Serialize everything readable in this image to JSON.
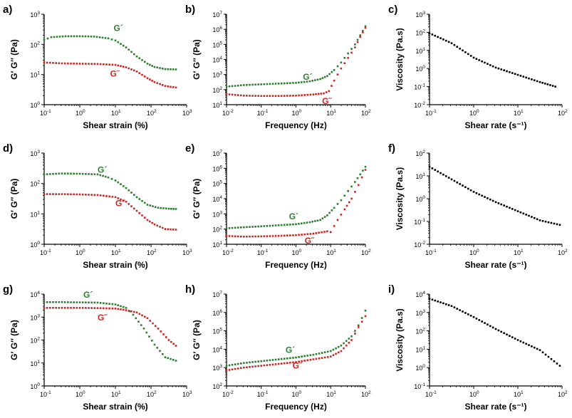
{
  "colors": {
    "g_prime": "#2e7d32",
    "g_double": "#c62828",
    "viscosity": "#000000",
    "axis": "#000000"
  },
  "chart_data": [
    {
      "panel": "a)",
      "type": "scatter",
      "xlabel": "Shear strain (%)",
      "ylabel": "G′ G″ (Pa)",
      "xlog": [
        -1,
        3
      ],
      "ylog": [
        0,
        3
      ],
      "xticks": [
        "-1",
        "0",
        "1",
        "2",
        "3"
      ],
      "yticks": [
        "0",
        "1",
        "2",
        "3"
      ],
      "series": [
        {
          "name": "G′",
          "label_text": "G´",
          "color_key": "g_prime",
          "points": [
            [
              -1,
              2.15
            ],
            [
              -0.8,
              2.24
            ],
            [
              -0.4,
              2.27
            ],
            [
              0,
              2.27
            ],
            [
              0.4,
              2.26
            ],
            [
              0.8,
              2.2
            ],
            [
              1.0,
              2.13
            ],
            [
              1.3,
              1.9
            ],
            [
              1.6,
              1.6
            ],
            [
              1.9,
              1.36
            ],
            [
              2.1,
              1.25
            ],
            [
              2.4,
              1.18
            ],
            [
              2.7,
              1.17
            ]
          ]
        },
        {
          "name": "G″",
          "label_text": "G˝",
          "color_key": "g_double",
          "points": [
            [
              -1,
              1.4
            ],
            [
              -0.5,
              1.37
            ],
            [
              0,
              1.36
            ],
            [
              0.5,
              1.35
            ],
            [
              1.0,
              1.32
            ],
            [
              1.3,
              1.24
            ],
            [
              1.6,
              1.1
            ],
            [
              1.9,
              0.88
            ],
            [
              2.1,
              0.75
            ],
            [
              2.4,
              0.62
            ],
            [
              2.7,
              0.57
            ]
          ]
        }
      ]
    },
    {
      "panel": "b)",
      "type": "scatter",
      "xlabel": "Frequency (Hz)",
      "ylabel": "G′ G″ (Pa)",
      "xlog": [
        -2,
        2
      ],
      "ylog": [
        1,
        7
      ],
      "xticks": [
        "-2",
        "-1",
        "0",
        "1",
        "2"
      ],
      "yticks": [
        "1",
        "2",
        "3",
        "4",
        "5",
        "6",
        "7"
      ],
      "series": [
        {
          "name": "G′",
          "label_text": "G´",
          "color_key": "g_prime",
          "points": [
            [
              -2,
              2.2
            ],
            [
              -1.5,
              2.3
            ],
            [
              -1,
              2.35
            ],
            [
              -0.5,
              2.4
            ],
            [
              0,
              2.45
            ],
            [
              0.4,
              2.55
            ],
            [
              0.7,
              2.7
            ],
            [
              0.9,
              2.9
            ],
            [
              1.1,
              3.3
            ],
            [
              1.3,
              3.8
            ],
            [
              1.5,
              4.4
            ],
            [
              1.7,
              5.0
            ],
            [
              1.85,
              5.6
            ],
            [
              2,
              6.2
            ]
          ]
        },
        {
          "name": "G″",
          "label_text": "G˝",
          "color_key": "g_double",
          "points": [
            [
              -2,
              1.7
            ],
            [
              -1.5,
              1.6
            ],
            [
              -1,
              1.58
            ],
            [
              -0.5,
              1.58
            ],
            [
              0,
              1.6
            ],
            [
              0.5,
              1.68
            ],
            [
              0.8,
              1.75
            ],
            [
              0.95,
              1.9
            ],
            [
              1.1,
              2.6
            ],
            [
              1.3,
              3.4
            ],
            [
              1.5,
              4.1
            ],
            [
              1.7,
              4.8
            ],
            [
              1.85,
              5.5
            ],
            [
              2,
              6.1
            ]
          ]
        }
      ]
    },
    {
      "panel": "c)",
      "type": "scatter",
      "xlabel": "Shear rate (s⁻¹)",
      "ylabel": "Viscosity (Pa.s)",
      "xlog": [
        -1,
        2
      ],
      "ylog": [
        -2,
        3
      ],
      "xticks": [
        "-1",
        "0",
        "1",
        "2"
      ],
      "yticks": [
        "-2",
        "-1",
        "0",
        "1",
        "2",
        "3"
      ],
      "series": [
        {
          "name": "Viscosity",
          "label_text": "",
          "color_key": "viscosity",
          "points": [
            [
              -1,
              1.95
            ],
            [
              -0.5,
              1.4
            ],
            [
              0,
              0.6
            ],
            [
              0.5,
              0.05
            ],
            [
              1,
              -0.35
            ],
            [
              1.5,
              -0.75
            ],
            [
              1.85,
              -1.0
            ]
          ]
        }
      ]
    },
    {
      "panel": "d)",
      "type": "scatter",
      "xlabel": "Shear strain (%)",
      "ylabel": "G′ G″ (Pa)",
      "xlog": [
        -1,
        3
      ],
      "ylog": [
        0,
        3
      ],
      "xticks": [
        "-1",
        "0",
        "1",
        "2",
        "3"
      ],
      "yticks": [
        "0",
        "1",
        "2",
        "3"
      ],
      "series": [
        {
          "name": "G′",
          "label_text": "G´",
          "color_key": "g_prime",
          "points": [
            [
              -1,
              2.3
            ],
            [
              -0.5,
              2.33
            ],
            [
              0,
              2.32
            ],
            [
              0.5,
              2.3
            ],
            [
              0.8,
              2.2
            ],
            [
              1.0,
              2.1
            ],
            [
              1.3,
              1.85
            ],
            [
              1.6,
              1.55
            ],
            [
              1.9,
              1.3
            ],
            [
              2.2,
              1.2
            ],
            [
              2.5,
              1.17
            ],
            [
              2.7,
              1.16
            ]
          ]
        },
        {
          "name": "G″",
          "label_text": "G˝",
          "color_key": "g_double",
          "points": [
            [
              -1,
              1.65
            ],
            [
              -0.5,
              1.65
            ],
            [
              0,
              1.64
            ],
            [
              0.5,
              1.62
            ],
            [
              1.0,
              1.55
            ],
            [
              1.3,
              1.4
            ],
            [
              1.6,
              1.1
            ],
            [
              1.9,
              0.8
            ],
            [
              2.1,
              0.65
            ],
            [
              2.4,
              0.5
            ],
            [
              2.7,
              0.48
            ]
          ]
        }
      ]
    },
    {
      "panel": "e)",
      "type": "scatter",
      "xlabel": "Frequency (Hz)",
      "ylabel": "G′ G″ (Pa)",
      "xlog": [
        -2,
        2
      ],
      "ylog": [
        1,
        7
      ],
      "xticks": [
        "-2",
        "-1",
        "0",
        "1",
        "2"
      ],
      "yticks": [
        "1",
        "2",
        "3",
        "4",
        "5",
        "6",
        "7"
      ],
      "series": [
        {
          "name": "G′",
          "label_text": "G´",
          "color_key": "g_prime",
          "points": [
            [
              -2,
              2.05
            ],
            [
              -1.5,
              2.12
            ],
            [
              -1,
              2.18
            ],
            [
              -0.5,
              2.25
            ],
            [
              0,
              2.32
            ],
            [
              0.4,
              2.45
            ],
            [
              0.7,
              2.6
            ],
            [
              0.9,
              2.9
            ],
            [
              1.1,
              3.4
            ],
            [
              1.3,
              3.9
            ],
            [
              1.5,
              4.5
            ],
            [
              1.7,
              5.1
            ],
            [
              1.85,
              5.6
            ],
            [
              2,
              6.1
            ]
          ]
        },
        {
          "name": "G″",
          "label_text": "G˝",
          "color_key": "g_double",
          "points": [
            [
              -2,
              1.55
            ],
            [
              -1.5,
              1.5
            ],
            [
              -1,
              1.52
            ],
            [
              -0.5,
              1.55
            ],
            [
              0,
              1.6
            ],
            [
              0.5,
              1.7
            ],
            [
              0.9,
              1.85
            ],
            [
              1.0,
              1.8
            ],
            [
              1.2,
              2.6
            ],
            [
              1.4,
              3.3
            ],
            [
              1.6,
              4.0
            ],
            [
              1.8,
              4.9
            ],
            [
              2,
              5.9
            ]
          ]
        }
      ]
    },
    {
      "panel": "f)",
      "type": "scatter",
      "xlabel": "Shear rate (s⁻¹)",
      "ylabel": "Viscosity (Pa.s)",
      "xlog": [
        -1,
        2
      ],
      "ylog": [
        -2,
        2
      ],
      "xticks": [
        "-1",
        "0",
        "1",
        "2"
      ],
      "yticks": [
        "-2",
        "-1",
        "0",
        "1",
        "2"
      ],
      "series": [
        {
          "name": "Viscosity",
          "label_text": "",
          "color_key": "viscosity",
          "points": [
            [
              -1,
              1.4
            ],
            [
              -0.5,
              0.85
            ],
            [
              0,
              0.3
            ],
            [
              0.5,
              -0.15
            ],
            [
              1,
              -0.55
            ],
            [
              1.5,
              -0.95
            ],
            [
              1.95,
              -1.15
            ]
          ]
        }
      ]
    },
    {
      "panel": "g)",
      "type": "scatter",
      "xlabel": "Shear strain (%)",
      "ylabel": "G′ G″ (Pa)",
      "xlog": [
        -1,
        3
      ],
      "ylog": [
        0,
        4
      ],
      "xticks": [
        "-1",
        "0",
        "1",
        "2",
        "3"
      ],
      "yticks": [
        "0",
        "1",
        "2",
        "3",
        "4"
      ],
      "series": [
        {
          "name": "G′",
          "label_text": "G´",
          "color_key": "g_prime",
          "points": [
            [
              -1,
              3.65
            ],
            [
              -0.5,
              3.65
            ],
            [
              0,
              3.64
            ],
            [
              0.5,
              3.63
            ],
            [
              1.0,
              3.55
            ],
            [
              1.3,
              3.4
            ],
            [
              1.5,
              3.1
            ],
            [
              1.8,
              2.5
            ],
            [
              2.1,
              1.8
            ],
            [
              2.4,
              1.25
            ],
            [
              2.7,
              1.1
            ]
          ]
        },
        {
          "name": "G″",
          "label_text": "G˝",
          "color_key": "g_double",
          "points": [
            [
              -1,
              3.4
            ],
            [
              -0.5,
              3.4
            ],
            [
              0,
              3.4
            ],
            [
              0.5,
              3.39
            ],
            [
              1.0,
              3.37
            ],
            [
              1.3,
              3.3
            ],
            [
              1.6,
              3.2
            ],
            [
              1.9,
              2.95
            ],
            [
              2.2,
              2.5
            ],
            [
              2.5,
              2.0
            ],
            [
              2.7,
              1.75
            ]
          ]
        }
      ]
    },
    {
      "panel": "h)",
      "type": "scatter",
      "xlabel": "Frequency (Hz)",
      "ylabel": "G′ G″ (Pa)",
      "xlog": [
        -2,
        2
      ],
      "ylog": [
        2,
        7
      ],
      "xticks": [
        "-2",
        "-1",
        "0",
        "1",
        "2"
      ],
      "yticks": [
        "2",
        "3",
        "4",
        "5",
        "6",
        "7"
      ],
      "series": [
        {
          "name": "G′",
          "label_text": "G´",
          "color_key": "g_prime",
          "points": [
            [
              -2,
              3.1
            ],
            [
              -1.5,
              3.25
            ],
            [
              -1,
              3.35
            ],
            [
              -0.5,
              3.45
            ],
            [
              0,
              3.55
            ],
            [
              0.5,
              3.7
            ],
            [
              1.0,
              3.9
            ],
            [
              1.3,
              4.2
            ],
            [
              1.6,
              4.7
            ],
            [
              1.8,
              5.3
            ],
            [
              2,
              6.1
            ]
          ]
        },
        {
          "name": "G″",
          "label_text": "G˝",
          "color_key": "g_double",
          "points": [
            [
              -2,
              2.85
            ],
            [
              -1.5,
              3.0
            ],
            [
              -1,
              3.1
            ],
            [
              -0.5,
              3.2
            ],
            [
              0,
              3.3
            ],
            [
              0.5,
              3.45
            ],
            [
              1.0,
              3.6
            ],
            [
              1.3,
              3.9
            ],
            [
              1.6,
              4.5
            ],
            [
              1.8,
              5.2
            ],
            [
              2,
              5.8
            ]
          ]
        }
      ]
    },
    {
      "panel": "i)",
      "type": "scatter",
      "xlabel": "Shear rate (s⁻¹)",
      "ylabel": "Viscosity (Pa.s)",
      "xlog": [
        -1,
        2
      ],
      "ylog": [
        -1,
        4
      ],
      "xticks": [
        "-1",
        "0",
        "1",
        "2"
      ],
      "yticks": [
        "-1",
        "0",
        "1",
        "2",
        "3",
        "4"
      ],
      "series": [
        {
          "name": "Viscosity",
          "label_text": "",
          "color_key": "viscosity",
          "points": [
            [
              -1,
              3.75
            ],
            [
              -0.5,
              3.35
            ],
            [
              0,
              2.75
            ],
            [
              0.5,
              2.1
            ],
            [
              1,
              1.5
            ],
            [
              1.5,
              0.95
            ],
            [
              1.95,
              0.1
            ]
          ]
        }
      ]
    }
  ]
}
